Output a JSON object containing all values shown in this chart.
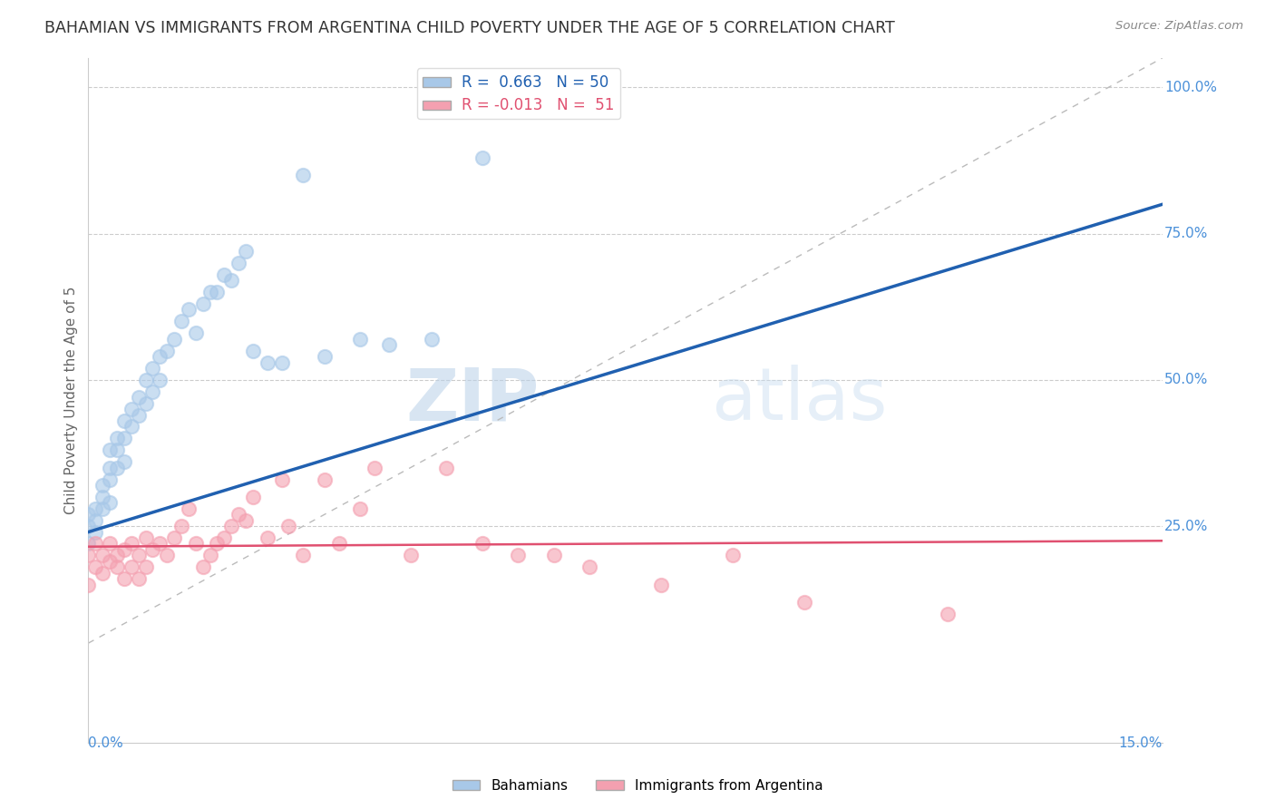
{
  "title": "BAHAMIAN VS IMMIGRANTS FROM ARGENTINA CHILD POVERTY UNDER THE AGE OF 5 CORRELATION CHART",
  "source": "Source: ZipAtlas.com",
  "ylabel": "Child Poverty Under the Age of 5",
  "xmin": 0.0,
  "xmax": 0.15,
  "ymin": -0.12,
  "ymax": 1.05,
  "blue_R": 0.663,
  "blue_N": 50,
  "pink_R": -0.013,
  "pink_N": 51,
  "blue_color": "#a8c8e8",
  "pink_color": "#f4a0b0",
  "blue_line_color": "#2060b0",
  "pink_line_color": "#e05070",
  "ref_line_color": "#bbbbbb",
  "grid_color": "#cccccc",
  "title_color": "#333333",
  "axis_label_color": "#4a90d9",
  "watermark_zip": "ZIP",
  "watermark_atlas": "atlas",
  "legend_blue_label": "R =  0.663   N = 50",
  "legend_pink_label": "R = -0.013   N =  51",
  "bahamians_x": [
    0.0,
    0.0,
    0.0,
    0.001,
    0.001,
    0.001,
    0.002,
    0.002,
    0.002,
    0.003,
    0.003,
    0.003,
    0.003,
    0.004,
    0.004,
    0.004,
    0.005,
    0.005,
    0.005,
    0.006,
    0.006,
    0.007,
    0.007,
    0.008,
    0.008,
    0.009,
    0.009,
    0.01,
    0.01,
    0.011,
    0.012,
    0.013,
    0.014,
    0.015,
    0.016,
    0.017,
    0.018,
    0.019,
    0.02,
    0.021,
    0.022,
    0.023,
    0.025,
    0.027,
    0.03,
    0.033,
    0.038,
    0.042,
    0.048,
    0.055
  ],
  "bahamians_y": [
    0.22,
    0.25,
    0.27,
    0.24,
    0.26,
    0.28,
    0.28,
    0.3,
    0.32,
    0.29,
    0.33,
    0.35,
    0.38,
    0.35,
    0.38,
    0.4,
    0.36,
    0.4,
    0.43,
    0.42,
    0.45,
    0.44,
    0.47,
    0.46,
    0.5,
    0.48,
    0.52,
    0.5,
    0.54,
    0.55,
    0.57,
    0.6,
    0.62,
    0.58,
    0.63,
    0.65,
    0.65,
    0.68,
    0.67,
    0.7,
    0.72,
    0.55,
    0.53,
    0.53,
    0.85,
    0.54,
    0.57,
    0.56,
    0.57,
    0.88
  ],
  "argentina_x": [
    0.0,
    0.0,
    0.001,
    0.001,
    0.002,
    0.002,
    0.003,
    0.003,
    0.004,
    0.004,
    0.005,
    0.005,
    0.006,
    0.006,
    0.007,
    0.007,
    0.008,
    0.008,
    0.009,
    0.01,
    0.011,
    0.012,
    0.013,
    0.014,
    0.015,
    0.016,
    0.017,
    0.018,
    0.019,
    0.02,
    0.021,
    0.022,
    0.023,
    0.025,
    0.027,
    0.028,
    0.03,
    0.033,
    0.035,
    0.038,
    0.04,
    0.045,
    0.05,
    0.055,
    0.06,
    0.065,
    0.07,
    0.08,
    0.09,
    0.1,
    0.12
  ],
  "argentina_y": [
    0.2,
    0.15,
    0.22,
    0.18,
    0.2,
    0.17,
    0.19,
    0.22,
    0.18,
    0.2,
    0.16,
    0.21,
    0.18,
    0.22,
    0.16,
    0.2,
    0.18,
    0.23,
    0.21,
    0.22,
    0.2,
    0.23,
    0.25,
    0.28,
    0.22,
    0.18,
    0.2,
    0.22,
    0.23,
    0.25,
    0.27,
    0.26,
    0.3,
    0.23,
    0.33,
    0.25,
    0.2,
    0.33,
    0.22,
    0.28,
    0.35,
    0.2,
    0.35,
    0.22,
    0.2,
    0.2,
    0.18,
    0.15,
    0.2,
    0.12,
    0.1
  ],
  "blue_line_x0": 0.0,
  "blue_line_x1": 0.15,
  "blue_line_y0": 0.24,
  "blue_line_y1": 0.8,
  "pink_line_x0": 0.0,
  "pink_line_x1": 0.15,
  "pink_line_y0": 0.215,
  "pink_line_y1": 0.225
}
